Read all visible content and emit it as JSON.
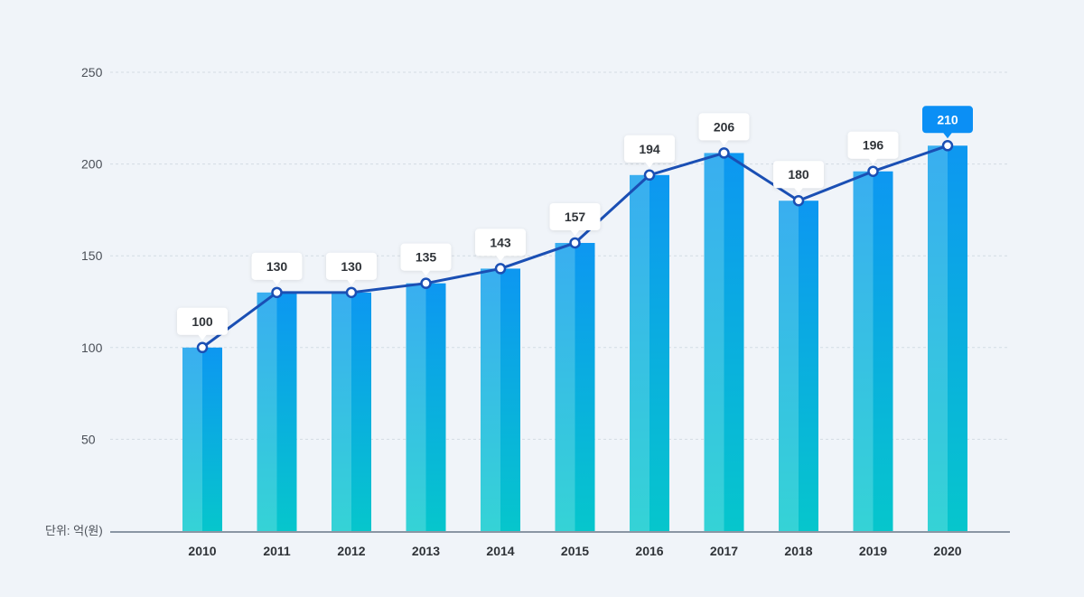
{
  "chart_data": {
    "type": "bar",
    "categories": [
      "2010",
      "2011",
      "2012",
      "2013",
      "2014",
      "2015",
      "2016",
      "2017",
      "2018",
      "2019",
      "2020"
    ],
    "values": [
      100,
      130,
      130,
      135,
      143,
      157,
      194,
      206,
      180,
      196,
      210
    ],
    "labels": [
      "100",
      "130",
      "130",
      "135",
      "143",
      "157",
      "194",
      "206",
      "180",
      "196",
      "210"
    ],
    "overlay_line": true,
    "highlight_index": 10,
    "ylim": [
      0,
      250
    ],
    "y_ticks": [
      "50",
      "100",
      "150",
      "200",
      "250"
    ],
    "unit_label": "단위: 억(원)",
    "grid": true,
    "colors": {
      "bar_top": "#2aa4f4",
      "bar_bottom": "#0fcdcf",
      "line": "#1a4fb4",
      "marker_fill": "#ffffff",
      "bubble": "#ffffff",
      "bubble_highlight": "#0b8ff5",
      "background": "#f0f4f9"
    }
  }
}
